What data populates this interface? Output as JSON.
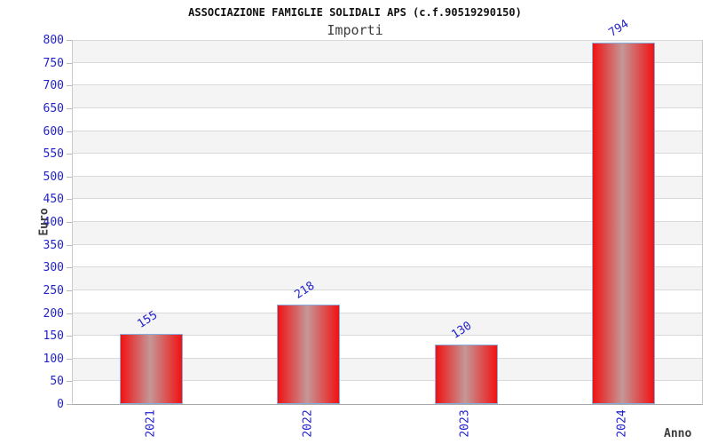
{
  "chart_data": {
    "type": "bar",
    "title": "ASSOCIAZIONE FAMIGLIE SOLIDALI APS (c.f.90519290150)",
    "subtitle": "Importi",
    "xlabel": "Anno",
    "ylabel": "Euro",
    "categories": [
      "2021",
      "2022",
      "2023",
      "2024"
    ],
    "values": [
      155,
      218,
      130,
      794
    ],
    "ylim": [
      0,
      800
    ],
    "y_tick_step": 50,
    "y_ticks": [
      0,
      50,
      100,
      150,
      200,
      250,
      300,
      350,
      400,
      450,
      500,
      550,
      600,
      650,
      700,
      750,
      800
    ],
    "grid": "horizontal gridlines with alternating shaded bands",
    "legend": "none",
    "colors": {
      "bar_edge_red": "#f11212",
      "bar_center_highlight": "#c49797",
      "bar_border_blue": "#86aede",
      "axis_text_blue": "#2222cc",
      "band_gray": "#f4f4f4",
      "gridline_gray": "#d9d9d9",
      "title_black": "#111111",
      "label_gray": "#3c3c3c"
    }
  }
}
